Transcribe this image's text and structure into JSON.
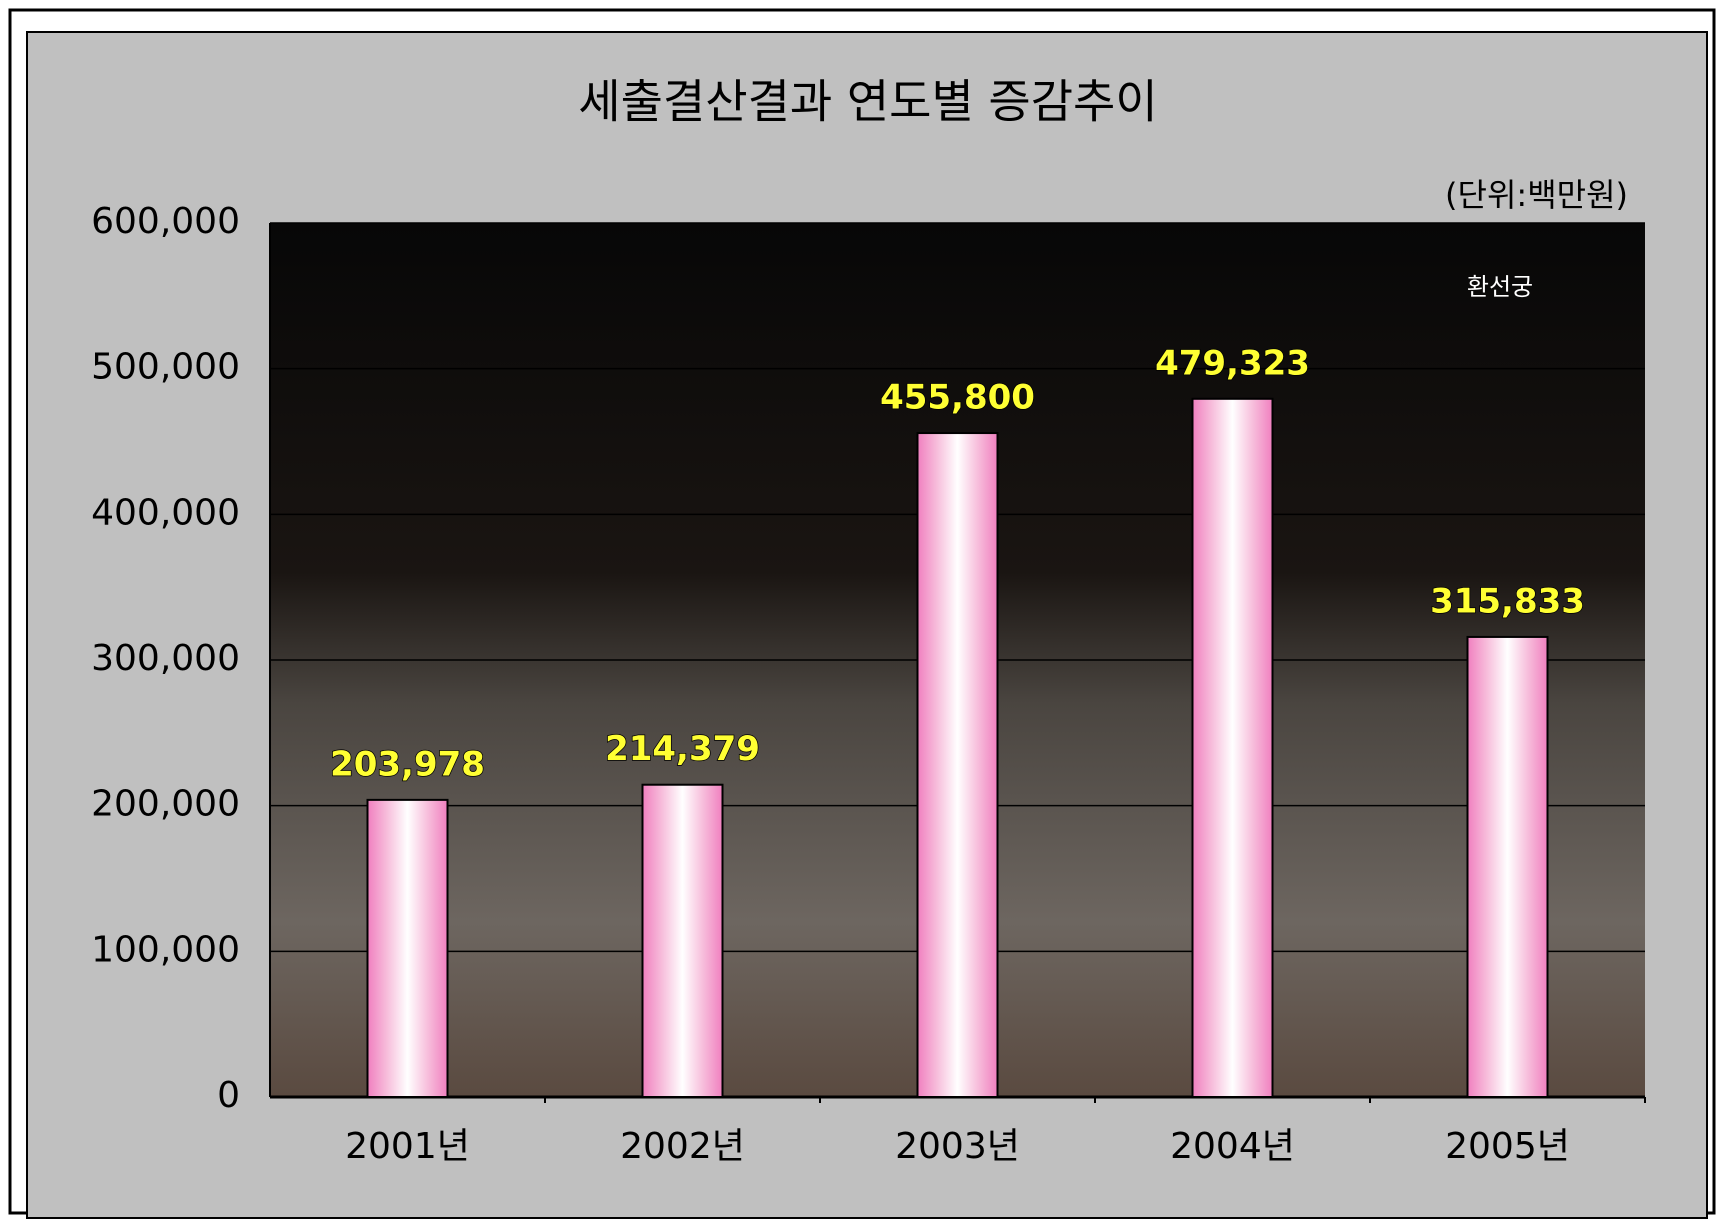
{
  "chart_data": {
    "type": "bar",
    "title": "세출결산결과 연도별 증감추이",
    "subtitle": "(단위:백만원)",
    "annotation": "환선궁",
    "categories": [
      "2001년",
      "2002년",
      "2003년",
      "2004년",
      "2005년"
    ],
    "values": [
      203978,
      214379,
      455800,
      479323,
      315833
    ],
    "value_labels": [
      "203,978",
      "214,379",
      "455,800",
      "479,323",
      "315,833"
    ],
    "color": "#f29ac8",
    "ylim": [
      0,
      600000
    ],
    "yticks": [
      0,
      {
        "value": 100000,
        "label": "100,000"
      },
      {
        "value": 200000,
        "label": "200,000"
      },
      {
        "value": 300000,
        "label": "300,000"
      },
      {
        "value": 400000,
        "label": "400,000"
      },
      {
        "value": 500000,
        "label": "500,000"
      },
      {
        "value": 600000,
        "label": "600,000"
      }
    ],
    "grid": true
  }
}
